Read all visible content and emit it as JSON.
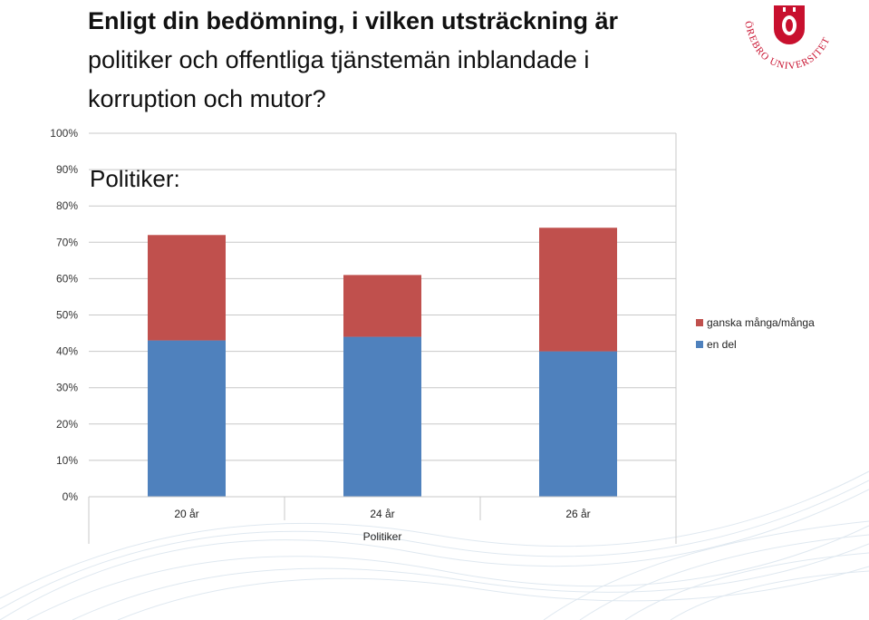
{
  "slide": {
    "title_line1": "Enligt din bedömning, i vilken utsträckning är",
    "title_line2": "politiker och offentliga tjänstemän inblandade i",
    "title_line3": "korruption och mutor?",
    "subtitle": "Politiker:",
    "logo_text": "ÖREBRO UNIVERSITET"
  },
  "colors": {
    "series1": "#4f81bd",
    "series2": "#c0504d"
  },
  "chart_data": {
    "type": "bar",
    "stacked": true,
    "categories": [
      "20 år",
      "24 år",
      "26 år"
    ],
    "series": [
      {
        "name": "en del",
        "values": [
          43,
          44,
          40
        ]
      },
      {
        "name": "ganska många/många",
        "values": [
          29,
          17,
          34
        ]
      }
    ],
    "xlabel": "Politiker",
    "ylabel": "",
    "ylim": [
      0,
      100
    ],
    "yticks": [
      "0%",
      "10%",
      "20%",
      "30%",
      "40%",
      "50%",
      "60%",
      "70%",
      "80%",
      "90%",
      "100%"
    ],
    "grid": true,
    "legend": "right"
  }
}
